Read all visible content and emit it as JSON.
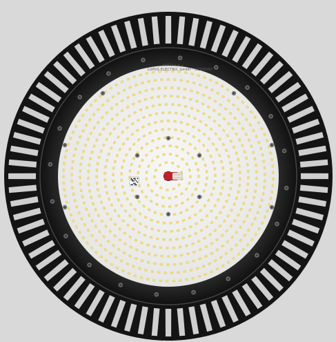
{
  "image": {
    "subject": "round-led-high-bay-light",
    "board_marking_line1": "KASCO ⊕ ⊕ ⚠",
    "board_marking_line2": "LUPUS ELECTRIC GmbH - GERMANY",
    "colors": {
      "background": "#d9d9d9",
      "housing": "#1c1c1c",
      "led_board": "#eeeeec",
      "led": "#f4dc7a",
      "connector_red": "#c0202a"
    }
  }
}
